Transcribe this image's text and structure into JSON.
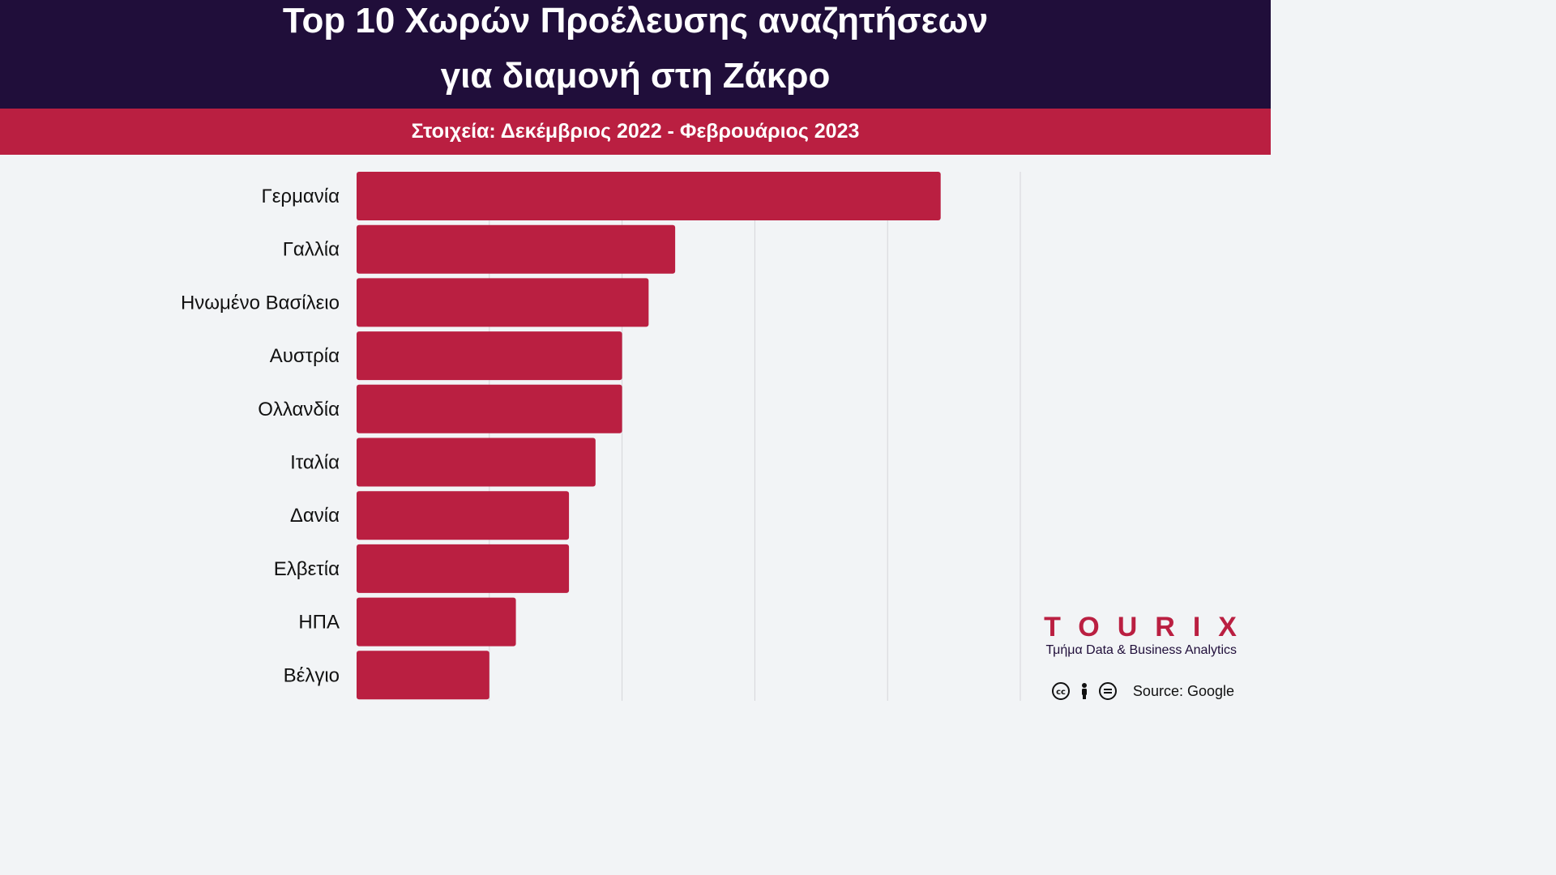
{
  "header": {
    "title_line1": "Top 10 Χωρών Προέλευσης αναζητήσεων",
    "title_line2": "για διαμονή στη Ζάκρο"
  },
  "subheader": {
    "text": "Στοιχεία: Δεκέμβριος 2022 - Φεβρουάριος 2023"
  },
  "colors": {
    "bar": "#ba1f41",
    "header_bg": "#200e3a",
    "subheader_bg": "#ba1f41",
    "grid": "#d5d5d9"
  },
  "chart_data": {
    "type": "bar",
    "orientation": "horizontal",
    "categories": [
      "Γερμανία",
      "Γαλλία",
      "Ηνωμένο Βασίλειο",
      "Αυστρία",
      "Ολλανδία",
      "Ιταλία",
      "Δανία",
      "Ελβετία",
      "ΗΠΑ",
      "Βέλγιο"
    ],
    "values": [
      22,
      12,
      11,
      10,
      10,
      9,
      8,
      8,
      6,
      5
    ],
    "xlim": [
      0,
      25
    ],
    "grid": true,
    "tick_labels_shown": false,
    "title": "Top 10 Χωρών Προέλευσης αναζητήσεων για διαμονή στη Ζάκρο"
  },
  "brand": {
    "name": "TOURIX",
    "subtitle": "Τμήμα Data & Business Analytics"
  },
  "footer": {
    "license_icons": [
      "cc-icon",
      "person-icon",
      "equals-icon"
    ],
    "source": "Source: Google"
  }
}
